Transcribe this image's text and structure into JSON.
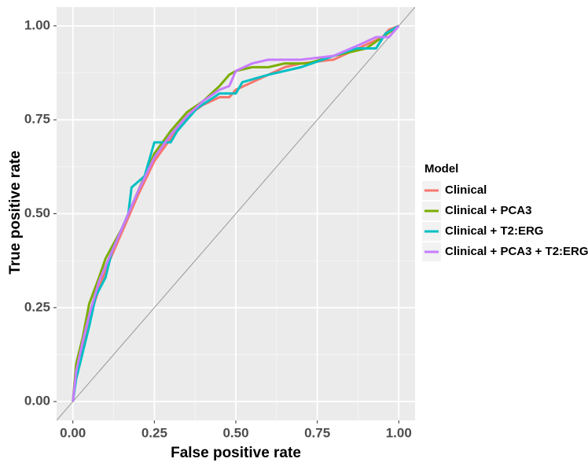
{
  "chart_data": {
    "type": "line",
    "x_label": "False positive rate",
    "y_label": "True positive rate",
    "legend_title": "Model",
    "legend_position": "right",
    "grid": true,
    "diagonal": true,
    "xlim": [
      -0.05,
      1.05
    ],
    "ylim": [
      -0.05,
      1.05
    ],
    "xticks": [
      {
        "value": 0,
        "label": "0.00"
      },
      {
        "value": 0.25,
        "label": "0.25"
      },
      {
        "value": 0.5,
        "label": "0.50"
      },
      {
        "value": 0.75,
        "label": "0.75"
      },
      {
        "value": 1,
        "label": "1.00"
      }
    ],
    "yticks": [
      {
        "value": 0,
        "label": "0.00"
      },
      {
        "value": 0.25,
        "label": "0.25"
      },
      {
        "value": 0.5,
        "label": "0.50"
      },
      {
        "value": 0.75,
        "label": "0.75"
      },
      {
        "value": 1,
        "label": "1.00"
      }
    ],
    "series": [
      {
        "name": "Clinical",
        "color": "#F8766D",
        "x": [
          0,
          0.01,
          0.03,
          0.05,
          0.08,
          0.1,
          0.15,
          0.2,
          0.25,
          0.3,
          0.35,
          0.4,
          0.45,
          0.48,
          0.5,
          0.55,
          0.6,
          0.65,
          0.7,
          0.8,
          0.9,
          0.95,
          0.97,
          1
        ],
        "values": [
          0,
          0.07,
          0.15,
          0.22,
          0.3,
          0.35,
          0.45,
          0.55,
          0.64,
          0.7,
          0.76,
          0.79,
          0.81,
          0.81,
          0.83,
          0.85,
          0.87,
          0.89,
          0.9,
          0.91,
          0.95,
          0.97,
          0.99,
          1
        ]
      },
      {
        "name": "Clinical + PCA3",
        "color": "#7CAE00",
        "x": [
          0,
          0.01,
          0.03,
          0.05,
          0.08,
          0.1,
          0.15,
          0.2,
          0.22,
          0.25,
          0.3,
          0.35,
          0.4,
          0.45,
          0.48,
          0.5,
          0.55,
          0.6,
          0.65,
          0.72,
          0.8,
          0.9,
          0.95,
          1
        ],
        "values": [
          0,
          0.1,
          0.17,
          0.26,
          0.33,
          0.38,
          0.46,
          0.56,
          0.6,
          0.66,
          0.72,
          0.77,
          0.8,
          0.84,
          0.87,
          0.88,
          0.89,
          0.89,
          0.9,
          0.9,
          0.92,
          0.94,
          0.97,
          1
        ]
      },
      {
        "name": "Clinical + T2:ERG",
        "color": "#00BFC4",
        "x": [
          0,
          0.01,
          0.03,
          0.05,
          0.07,
          0.1,
          0.12,
          0.17,
          0.18,
          0.22,
          0.24,
          0.25,
          0.3,
          0.32,
          0.38,
          0.45,
          0.5,
          0.52,
          0.6,
          0.7,
          0.8,
          0.87,
          0.93,
          0.96,
          1
        ],
        "values": [
          0,
          0.06,
          0.13,
          0.2,
          0.28,
          0.33,
          0.4,
          0.5,
          0.57,
          0.6,
          0.66,
          0.69,
          0.69,
          0.72,
          0.78,
          0.82,
          0.82,
          0.85,
          0.87,
          0.89,
          0.92,
          0.94,
          0.94,
          0.98,
          1
        ]
      },
      {
        "name": "Clinical + PCA3 + T2:ERG",
        "color": "#C77CFF",
        "x": [
          0,
          0.01,
          0.03,
          0.05,
          0.08,
          0.1,
          0.15,
          0.2,
          0.25,
          0.3,
          0.35,
          0.4,
          0.45,
          0.48,
          0.5,
          0.55,
          0.6,
          0.7,
          0.8,
          0.88,
          0.93,
          0.97,
          1
        ],
        "values": [
          0,
          0.08,
          0.16,
          0.23,
          0.32,
          0.36,
          0.46,
          0.56,
          0.65,
          0.71,
          0.76,
          0.8,
          0.83,
          0.84,
          0.88,
          0.9,
          0.91,
          0.91,
          0.92,
          0.95,
          0.97,
          0.97,
          1
        ]
      }
    ]
  }
}
